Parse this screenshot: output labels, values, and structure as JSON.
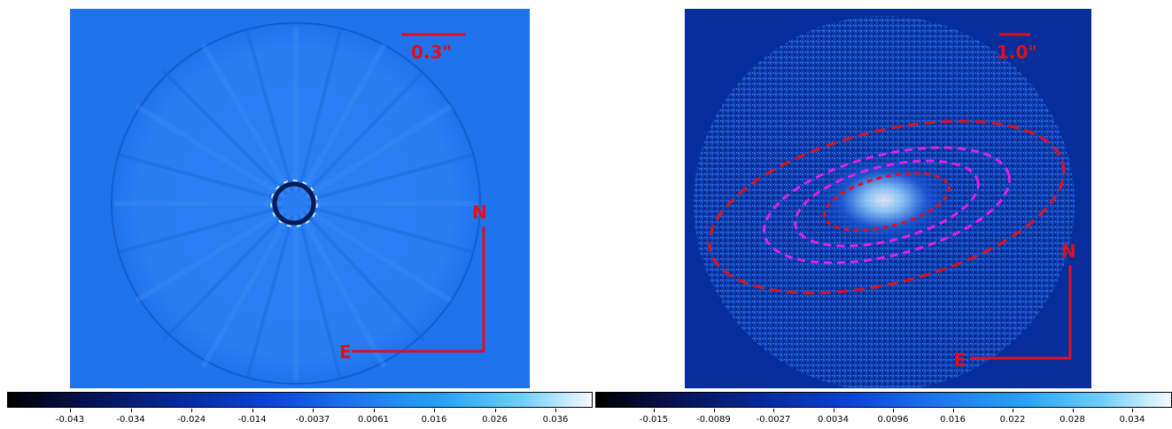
{
  "left_panel": {
    "scale_label": "0.3\"",
    "north_label": "N",
    "east_label": "E",
    "colorbar_ticks": [
      "-0.043",
      "-0.034",
      "-0.024",
      "-0.014",
      "-0.0037",
      "0.0061",
      "0.016",
      "0.026",
      "0.036"
    ],
    "background_color": "#1f74ee"
  },
  "right_panel": {
    "scale_label": "1.0\"",
    "north_label": "N",
    "east_label": "E",
    "colorbar_ticks": [
      "-0.015",
      "-0.0089",
      "-0.0027",
      "0.0034",
      "0.0096",
      "0.016",
      "0.022",
      "0.028",
      "0.034"
    ],
    "background_color": "#062f9c"
  },
  "colors": {
    "annotation_red": "#e0101a",
    "ellipse_magenta": "#e020e8"
  }
}
